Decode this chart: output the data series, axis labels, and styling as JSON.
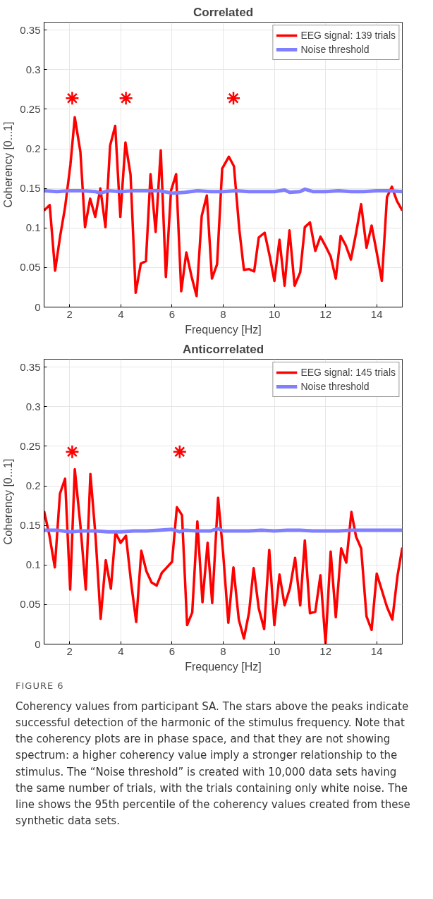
{
  "chart_data": [
    {
      "type": "line",
      "title": "Correlated",
      "xlabel": "Frequency [Hz]",
      "ylabel": "Coherency [0...1]",
      "xlim": [
        1,
        15
      ],
      "ylim": [
        0,
        0.36
      ],
      "xticks": [
        2,
        4,
        6,
        8,
        10,
        12,
        14
      ],
      "yticks": [
        0,
        0.05,
        0.1,
        0.15,
        0.2,
        0.25,
        0.3,
        0.35
      ],
      "grid": true,
      "legend": "top right",
      "line_style": "solid",
      "series": [
        {
          "name": "EEG signal: 139 trials",
          "color": "#ff0000",
          "x": [
            1.0,
            1.22,
            1.43,
            1.63,
            1.82,
            2.03,
            2.2,
            2.42,
            2.6,
            2.8,
            3.0,
            3.2,
            3.4,
            3.58,
            3.78,
            3.98,
            4.18,
            4.38,
            4.58,
            4.78,
            4.98,
            5.16,
            5.36,
            5.56,
            5.76,
            5.96,
            6.16,
            6.36,
            6.56,
            6.76,
            6.96,
            7.16,
            7.36,
            7.56,
            7.76,
            7.96,
            8.22,
            8.42,
            8.63,
            8.81,
            9.01,
            9.21,
            9.39,
            9.62,
            9.82,
            10.0,
            10.2,
            10.4,
            10.59,
            10.79,
            11.01,
            11.19,
            11.39,
            11.6,
            11.8,
            12.0,
            12.2,
            12.4,
            12.59,
            12.79,
            12.99,
            13.19,
            13.39,
            13.6,
            13.8,
            14.0,
            14.2,
            14.4,
            14.59,
            14.79,
            15.0
          ],
          "values": [
            0.122,
            0.129,
            0.046,
            0.09,
            0.126,
            0.18,
            0.24,
            0.196,
            0.101,
            0.137,
            0.114,
            0.15,
            0.101,
            0.204,
            0.229,
            0.114,
            0.208,
            0.167,
            0.018,
            0.055,
            0.058,
            0.168,
            0.095,
            0.198,
            0.038,
            0.147,
            0.168,
            0.02,
            0.069,
            0.039,
            0.014,
            0.115,
            0.141,
            0.036,
            0.054,
            0.175,
            0.19,
            0.178,
            0.098,
            0.047,
            0.048,
            0.045,
            0.088,
            0.094,
            0.064,
            0.033,
            0.085,
            0.027,
            0.097,
            0.027,
            0.044,
            0.101,
            0.107,
            0.071,
            0.089,
            0.077,
            0.064,
            0.036,
            0.09,
            0.078,
            0.06,
            0.093,
            0.13,
            0.075,
            0.103,
            0.069,
            0.033,
            0.139,
            0.152,
            0.134,
            0.122
          ]
        },
        {
          "name": "Noise threshold",
          "color": "#7f7fff",
          "x": [
            1,
            1.5,
            2,
            2.5,
            3,
            3.2,
            3.5,
            4,
            4.5,
            5,
            5.5,
            6,
            6.5,
            7,
            7.5,
            8,
            8.5,
            9,
            9.5,
            10,
            10.4,
            10.6,
            11,
            11.2,
            11.5,
            12,
            12.5,
            13,
            13.5,
            14,
            14.5,
            15
          ],
          "values": [
            0.147,
            0.146,
            0.147,
            0.147,
            0.146,
            0.144,
            0.147,
            0.146,
            0.147,
            0.147,
            0.147,
            0.144,
            0.145,
            0.147,
            0.146,
            0.146,
            0.147,
            0.146,
            0.146,
            0.146,
            0.148,
            0.145,
            0.146,
            0.149,
            0.146,
            0.146,
            0.147,
            0.146,
            0.146,
            0.147,
            0.147,
            0.146
          ]
        },
        {
          "color": "#ff0000",
          "type": "scatter",
          "marker": "cross",
          "x": [
            2.1,
            4.2,
            8.4
          ],
          "values": [
            0.264,
            0.264,
            0.264
          ]
        }
      ]
    },
    {
      "type": "line",
      "title": "Anticorrelated",
      "xlabel": "Frequency [Hz]",
      "ylabel": "Coherency [0...1]",
      "xlim": [
        1,
        15
      ],
      "ylim": [
        0,
        0.36
      ],
      "xticks": [
        2,
        4,
        6,
        8,
        10,
        12,
        14
      ],
      "yticks": [
        0,
        0.05,
        0.1,
        0.15,
        0.2,
        0.25,
        0.3,
        0.35
      ],
      "grid": true,
      "legend": "top right",
      "line_style": "solid",
      "series": [
        {
          "name": "EEG signal: 145 trials",
          "color": "#ff0000",
          "x": [
            1.0,
            1.2,
            1.42,
            1.62,
            1.82,
            2.02,
            2.2,
            2.42,
            2.63,
            2.81,
            3.01,
            3.21,
            3.41,
            3.61,
            3.79,
            3.99,
            4.2,
            4.4,
            4.6,
            4.8,
            5.0,
            5.2,
            5.4,
            5.6,
            5.8,
            6.0,
            6.19,
            6.39,
            6.59,
            6.79,
            6.99,
            7.19,
            7.39,
            7.57,
            7.8,
            8.0,
            8.2,
            8.4,
            8.61,
            8.81,
            9.01,
            9.19,
            9.39,
            9.6,
            9.8,
            10.0,
            10.2,
            10.4,
            10.61,
            10.81,
            11.01,
            11.19,
            11.39,
            11.6,
            11.8,
            12.0,
            12.2,
            12.4,
            12.61,
            12.81,
            13.01,
            13.19,
            13.39,
            13.6,
            13.8,
            14.0,
            14.2,
            14.4,
            14.61,
            14.81,
            15.0
          ],
          "values": [
            0.168,
            0.139,
            0.097,
            0.19,
            0.209,
            0.069,
            0.221,
            0.15,
            0.069,
            0.215,
            0.137,
            0.032,
            0.106,
            0.07,
            0.141,
            0.128,
            0.137,
            0.078,
            0.028,
            0.118,
            0.092,
            0.078,
            0.074,
            0.09,
            0.097,
            0.104,
            0.173,
            0.163,
            0.024,
            0.04,
            0.155,
            0.053,
            0.128,
            0.052,
            0.185,
            0.114,
            0.027,
            0.097,
            0.031,
            0.007,
            0.04,
            0.096,
            0.045,
            0.019,
            0.119,
            0.024,
            0.088,
            0.049,
            0.071,
            0.109,
            0.049,
            0.131,
            0.039,
            0.041,
            0.087,
            0.001,
            0.117,
            0.034,
            0.121,
            0.103,
            0.167,
            0.136,
            0.121,
            0.035,
            0.018,
            0.089,
            0.068,
            0.047,
            0.031,
            0.086,
            0.122
          ]
        },
        {
          "name": "Noise threshold",
          "color": "#7f7fff",
          "x": [
            1,
            1.5,
            2,
            2.5,
            3,
            3.5,
            4,
            4.5,
            5,
            5.5,
            6,
            6.3,
            6.5,
            7,
            7.5,
            7.8,
            8,
            8.5,
            9,
            9.5,
            10,
            10.5,
            11,
            11.5,
            12,
            12.5,
            13,
            13.5,
            14,
            14.5,
            15
          ],
          "values": [
            0.144,
            0.144,
            0.142,
            0.143,
            0.143,
            0.142,
            0.142,
            0.143,
            0.143,
            0.144,
            0.145,
            0.142,
            0.144,
            0.143,
            0.143,
            0.146,
            0.143,
            0.143,
            0.143,
            0.144,
            0.143,
            0.144,
            0.144,
            0.143,
            0.143,
            0.143,
            0.144,
            0.144,
            0.144,
            0.144,
            0.144
          ]
        },
        {
          "color": "#ff0000",
          "type": "scatter",
          "marker": "cross",
          "x": [
            2.1,
            6.3
          ],
          "values": [
            0.243,
            0.243
          ]
        }
      ],
      "annotations": [
        "FIGURE 6",
        "Coherency values from participant SA. The stars above the peaks indicate successful detection of the harmonic of the stimulus frequency. Note that the coherency plots are in phase space, and that they are not showing spectrum: a higher coherency value imply a stronger relationship to the stimulus. The “Noise threshold” is created with 10,000 data sets having the same number of trials, with the trials containing only white noise. The line shows the 95th percentile of the coherency values created from these synthetic data sets."
      ]
    }
  ]
}
